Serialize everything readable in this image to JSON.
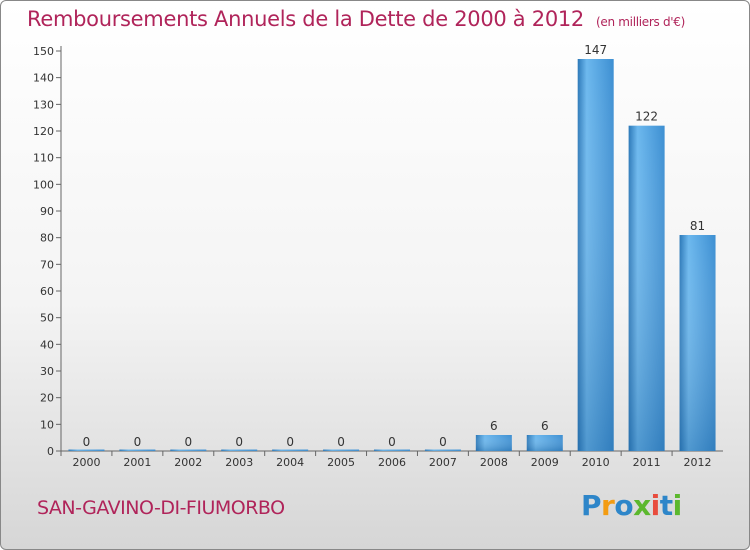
{
  "title": "Remboursements Annuels de la Dette de 2000 à 2012",
  "unit": "(en milliers d'€)",
  "commune": "SAN-GAVINO-DI-FIUMORBO",
  "brand": {
    "letters": [
      "P",
      "r",
      "o",
      "x",
      "i",
      "t",
      "i"
    ],
    "colors": [
      "#2e86c9",
      "#f39c12",
      "#2e86c9",
      "#5cb82e",
      "#e84c3d",
      "#2e86c9",
      "#5cb82e"
    ]
  },
  "colors": {
    "title": "#b0245a",
    "bar": "#4a9fdf",
    "bar_light": "#6cb8ee",
    "bar_dark": "#2b78b8"
  },
  "chart_data": {
    "type": "bar",
    "title": "Remboursements Annuels de la Dette de 2000 à 2012",
    "ylabel": "(en milliers d'€)",
    "xlabel": "",
    "categories": [
      "2000",
      "2001",
      "2002",
      "2003",
      "2004",
      "2005",
      "2006",
      "2007",
      "2008",
      "2009",
      "2010",
      "2011",
      "2012"
    ],
    "values": [
      0,
      0,
      0,
      0,
      0,
      0,
      0,
      0,
      6,
      6,
      147,
      122,
      81
    ],
    "ylim": [
      0,
      150
    ],
    "yticks": [
      0,
      10,
      20,
      30,
      40,
      50,
      60,
      70,
      80,
      90,
      100,
      110,
      120,
      130,
      140,
      150
    ],
    "grid": false
  }
}
